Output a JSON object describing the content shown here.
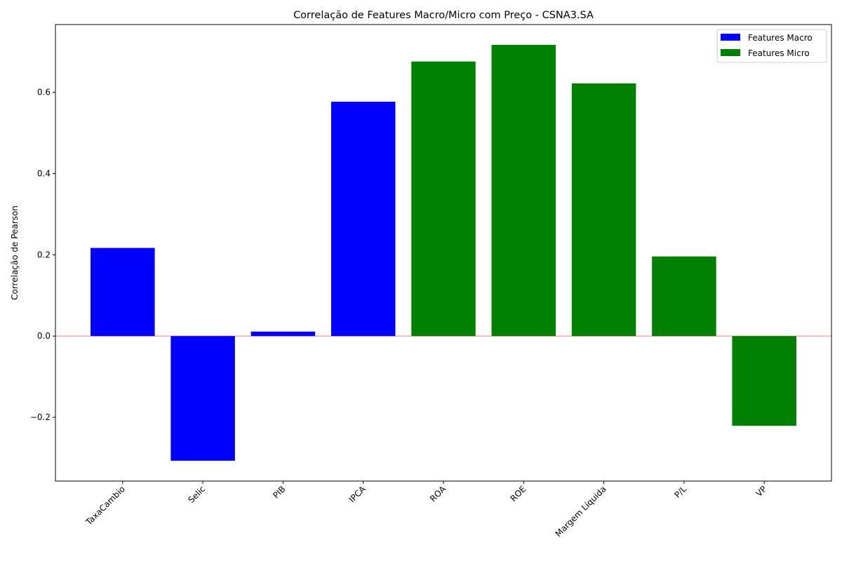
{
  "chart_data": {
    "type": "bar",
    "title": "Correlação de Features Macro/Micro com Preço - CSNA3.SA",
    "xlabel": "",
    "ylabel": "Correlação de Pearson",
    "categories": [
      "TaxaCambio",
      "Selic",
      "PIB",
      "IPCA",
      "ROA",
      "ROE",
      "Margem Líquida",
      "P/L",
      "VP"
    ],
    "values": [
      0.217,
      -0.307,
      0.011,
      0.577,
      0.676,
      0.717,
      0.622,
      0.196,
      -0.221
    ],
    "groups": [
      "macro",
      "macro",
      "macro",
      "macro",
      "micro",
      "micro",
      "micro",
      "micro",
      "micro"
    ],
    "series": [
      {
        "key": "macro",
        "name": "Features Macro",
        "color": "#0000ff"
      },
      {
        "key": "micro",
        "name": "Features Micro",
        "color": "#008000"
      }
    ],
    "ylim": [
      -0.357,
      0.767
    ],
    "yticks": [
      -0.2,
      0.0,
      0.2,
      0.4,
      0.6
    ],
    "ytick_labels": [
      "−0.2",
      "0.0",
      "0.2",
      "0.4",
      "0.6"
    ],
    "zero_line_color": "#ff9999",
    "grid": false,
    "legend_position": "top-right"
  }
}
